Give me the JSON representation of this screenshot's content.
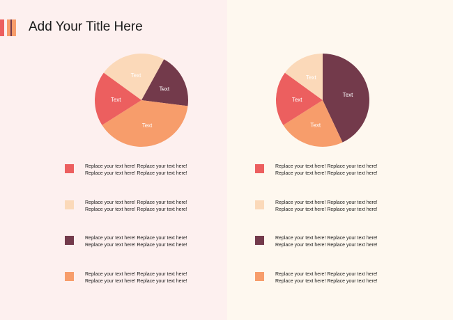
{
  "title": "Add Your Title Here",
  "colors": {
    "panel_left_bg": "#fdf0ef",
    "panel_right_bg": "#fef8ef",
    "accent_coral": "#ec5f5f",
    "accent_peach": "#fbd9b9",
    "accent_plum": "#733a4b",
    "accent_orange": "#f79d6b"
  },
  "chart_data": [
    {
      "type": "pie",
      "title": "",
      "slices": [
        {
          "label": "Text",
          "value": 23,
          "color": "#fbd9b9"
        },
        {
          "label": "Text",
          "value": 19,
          "color": "#733a4b"
        },
        {
          "label": "Text",
          "value": 39,
          "color": "#f79d6b"
        },
        {
          "label": "Text",
          "value": 19,
          "color": "#ec5f5f"
        }
      ]
    },
    {
      "type": "pie",
      "title": "",
      "slices": [
        {
          "label": "Text",
          "value": 43,
          "color": "#733a4b"
        },
        {
          "label": "Text",
          "value": 23,
          "color": "#f79d6b"
        },
        {
          "label": "Text",
          "value": 19,
          "color": "#ec5f5f"
        },
        {
          "label": "Text",
          "value": 15,
          "color": "#fbd9b9"
        }
      ]
    }
  ],
  "legends": {
    "left": [
      {
        "color": "#ec5f5f",
        "line1": "Replace your text here!   Replace your text here!",
        "line2": "Replace your text here!   Replace your text here!"
      },
      {
        "color": "#fbd9b9",
        "line1": "Replace your text here!   Replace your text here!",
        "line2": "Replace your text here!   Replace your text here!"
      },
      {
        "color": "#733a4b",
        "line1": "Replace your text here!   Replace your text here!",
        "line2": "Replace your text here!   Replace your text here!"
      },
      {
        "color": "#f79d6b",
        "line1": "Replace your text here!   Replace your text here!",
        "line2": "Replace your text here!   Replace your text here!"
      }
    ],
    "right": [
      {
        "color": "#ec5f5f",
        "line1": "Replace your text here!   Replace your text here!",
        "line2": "Replace your text here!   Replace your text here!"
      },
      {
        "color": "#fbd9b9",
        "line1": "Replace your text here!   Replace your text here!",
        "line2": "Replace your text here!   Replace your text here!"
      },
      {
        "color": "#733a4b",
        "line1": "Replace your text here!   Replace your text here!",
        "line2": "Replace your text here!   Replace your text here!"
      },
      {
        "color": "#f79d6b",
        "line1": "Replace your text here!   Replace your text here!",
        "line2": "Replace your text here!   Replace your text here!"
      }
    ]
  }
}
